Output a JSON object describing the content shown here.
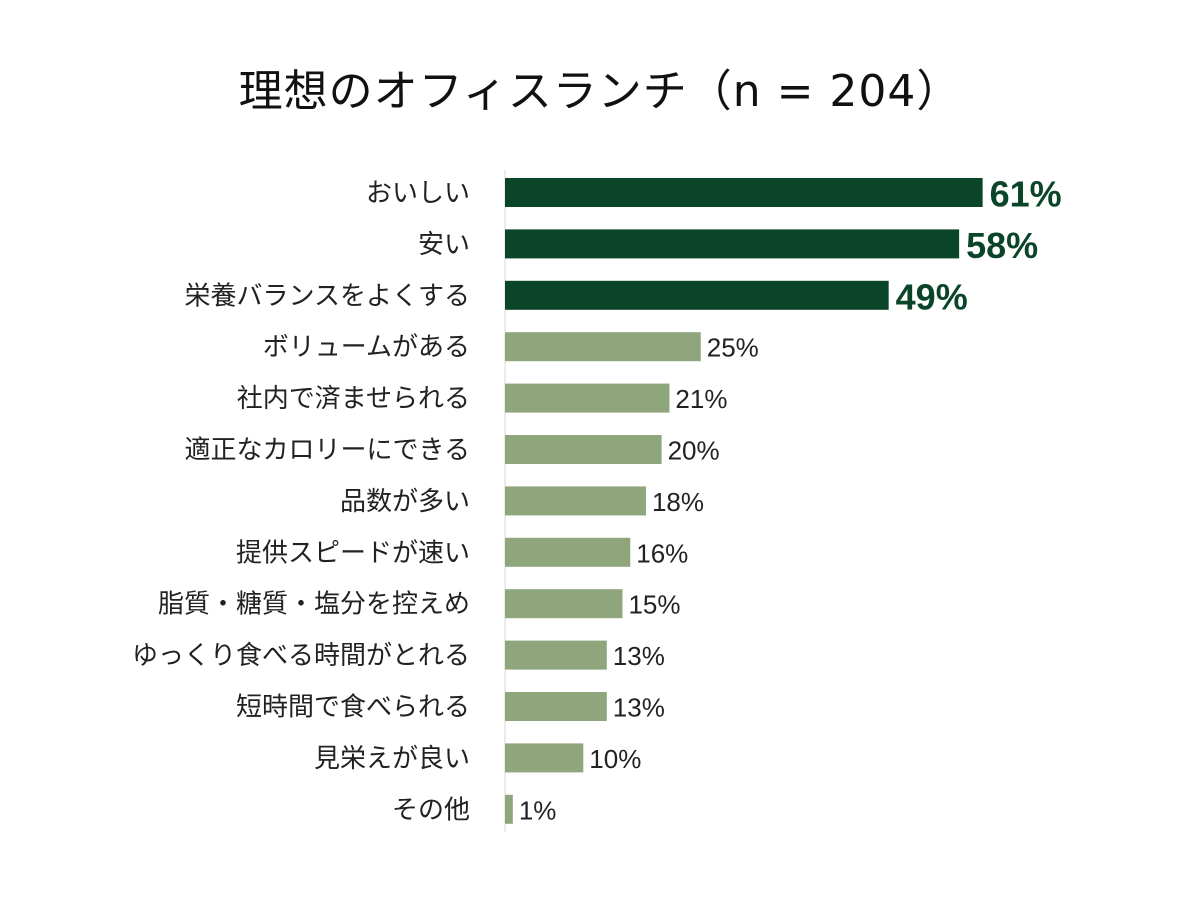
{
  "chart_data": {
    "type": "bar",
    "orientation": "horizontal",
    "title": "理想のオフィスランチ（n = 204）",
    "categories": [
      "おいしい",
      "安い",
      "栄養バランスをよくする",
      "ボリュームがある",
      "社内で済ませられる",
      "適正なカロリーにできる",
      "品数が多い",
      "提供スピードが速い",
      "脂質・糖質・塩分を控えめ",
      "ゆっくり食べる時間がとれる",
      "短時間で食べられる",
      "見栄えが良い",
      "その他"
    ],
    "values": [
      61,
      58,
      49,
      25,
      21,
      20,
      18,
      16,
      15,
      13,
      13,
      10,
      1
    ],
    "labels": [
      "61%",
      "58%",
      "49%",
      "25%",
      "21%",
      "20%",
      "18%",
      "16%",
      "15%",
      "13%",
      "13%",
      "10%",
      "1%"
    ],
    "highlight_top": 3,
    "unit": "%",
    "grid": false,
    "legend": "none",
    "colors": {
      "highlight": "#0b4529",
      "normal": "#8fa67c",
      "highlight_label": "#0b4529",
      "normal_label": "#222222"
    }
  }
}
